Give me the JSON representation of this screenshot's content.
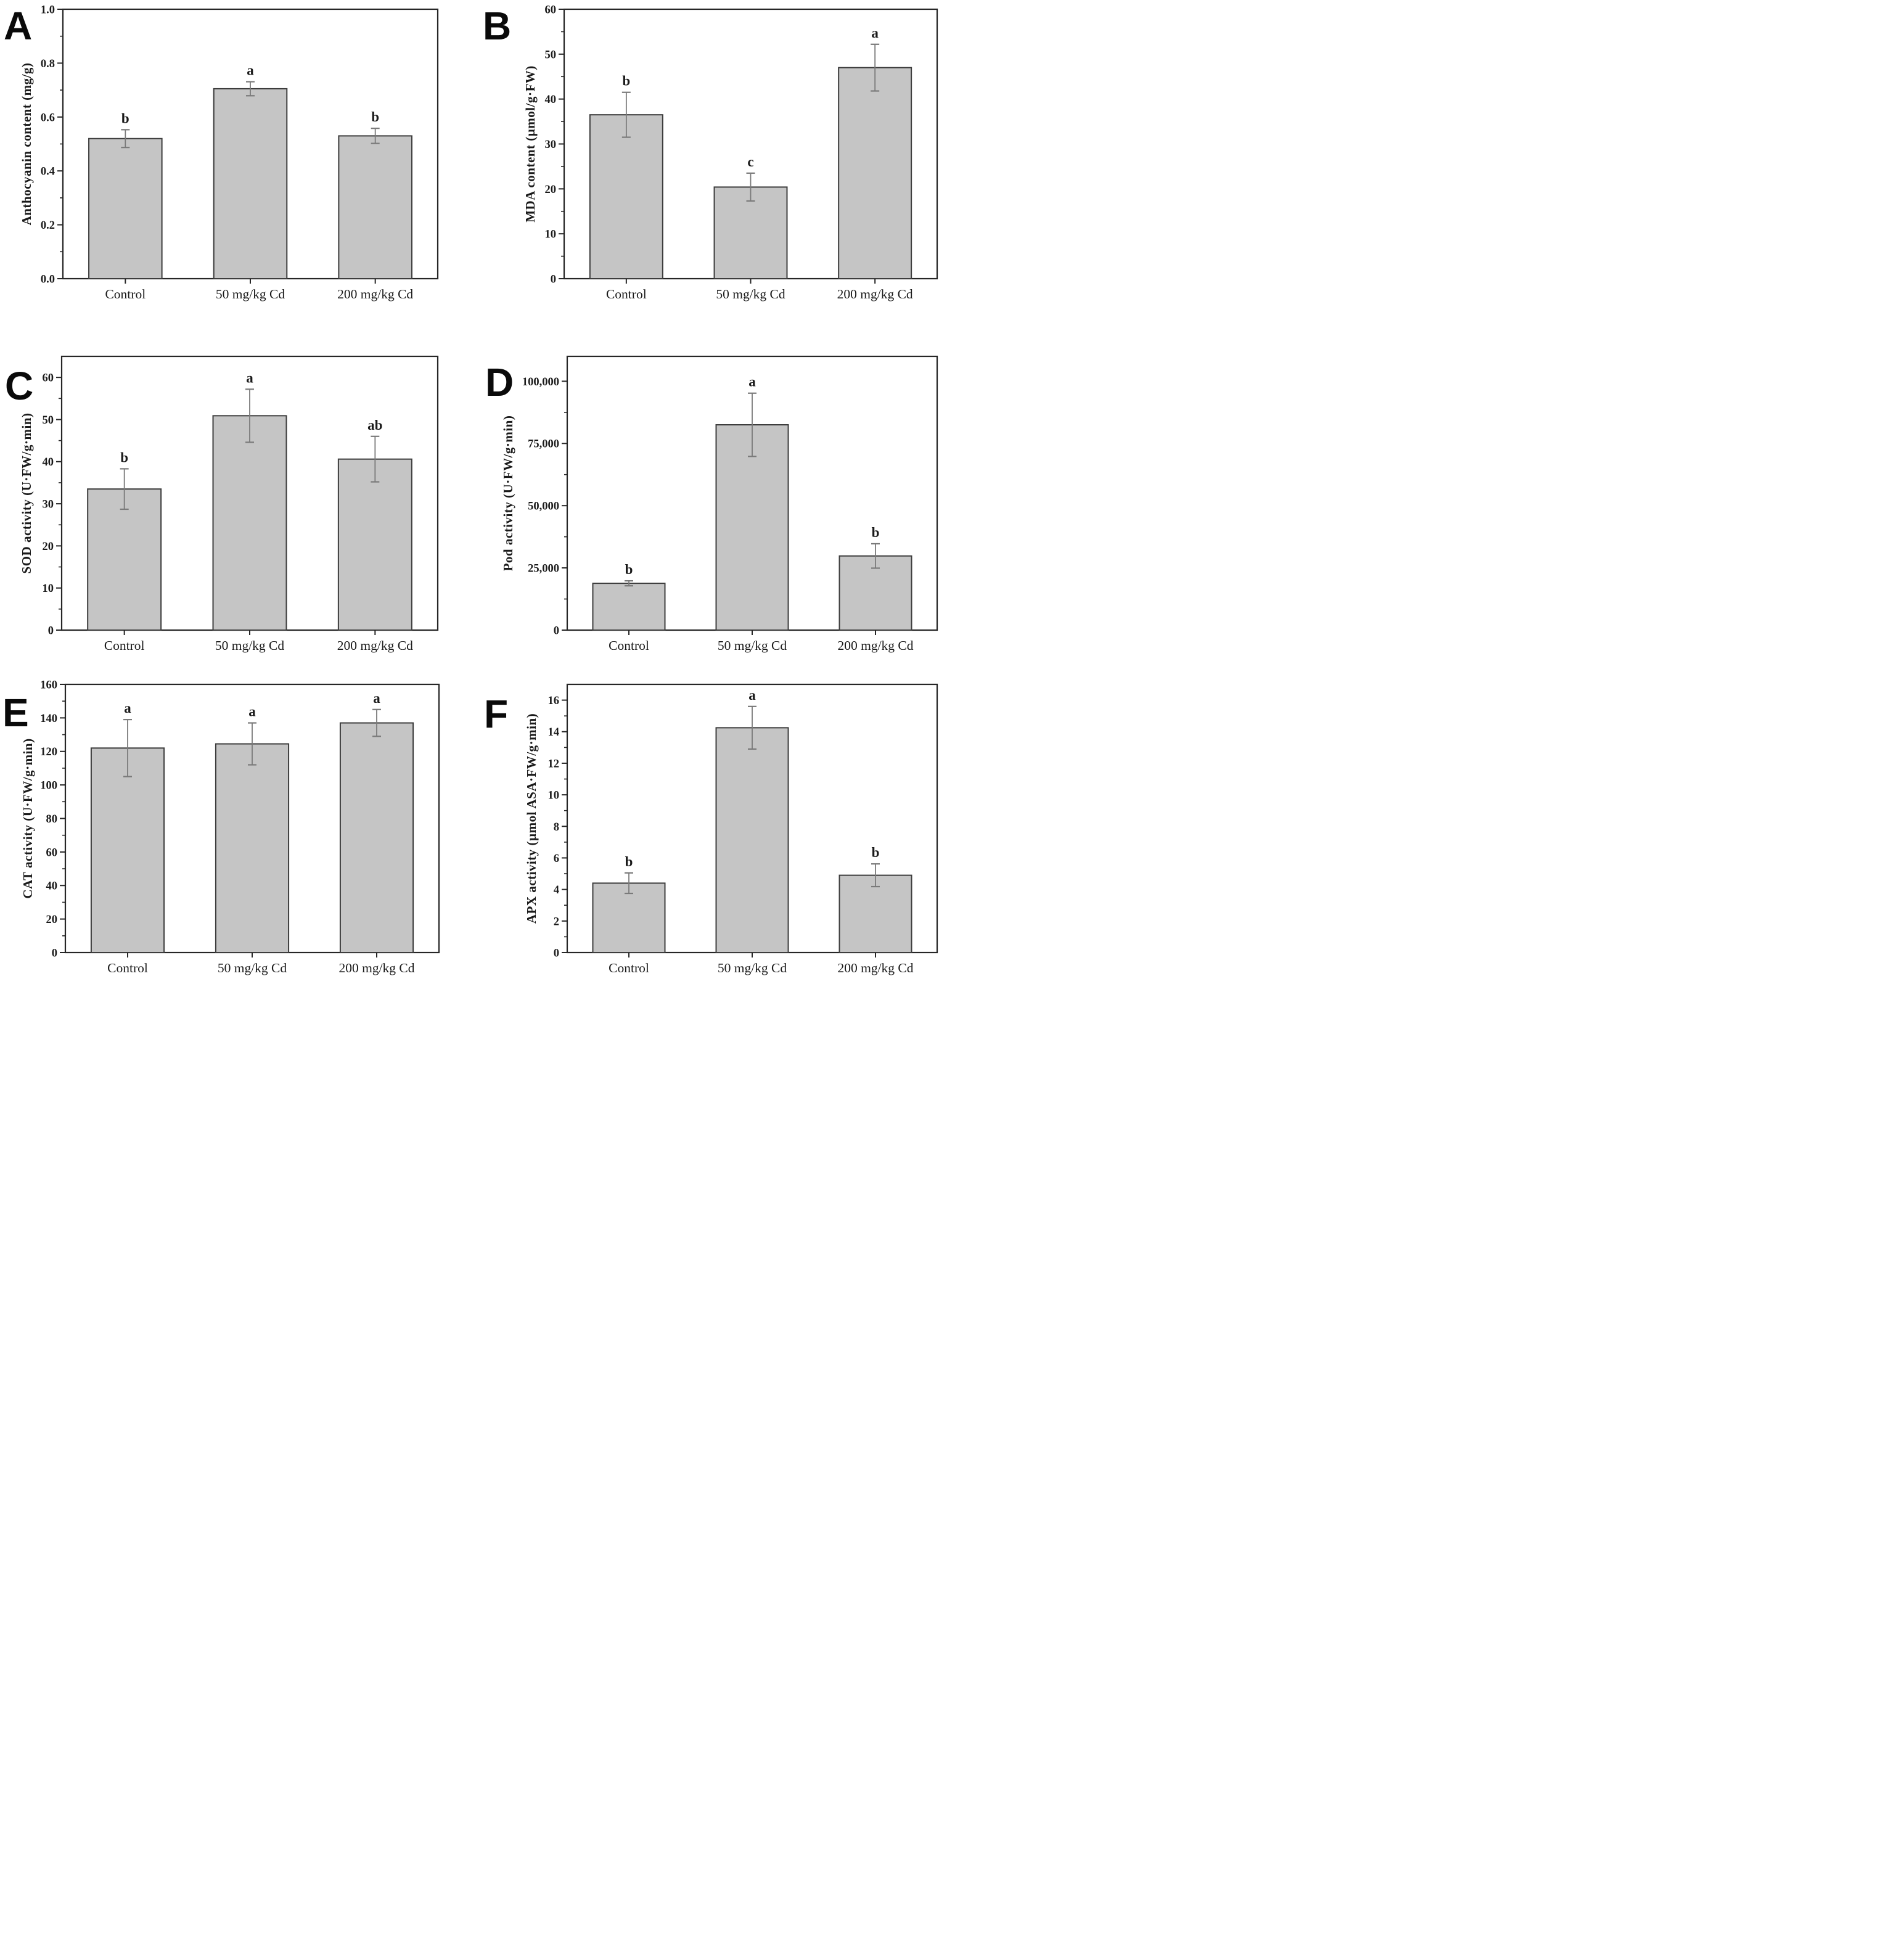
{
  "figure_title": "",
  "treatment_groups": [
    "Control",
    "50 mg/kg Cd",
    "200 mg/kg Cd"
  ],
  "style": {
    "bar_fill": "#c5c5c5",
    "bar_stroke": "#3d3d3d",
    "error_bar_color": "#7a7a7a",
    "axis_color": "#262626",
    "text_color": "#1a1a1a",
    "sig_letter_color": "#000000",
    "background": "#ffffff"
  },
  "chart_data": [
    {
      "panel": "A",
      "type": "bar",
      "title": "",
      "xlabel": "",
      "ylabel": "Anthocyanin content (mg/g)",
      "categories": [
        "Control",
        "50 mg/kg Cd",
        "200 mg/kg Cd"
      ],
      "values": [
        0.52,
        0.705,
        0.53
      ],
      "errors": [
        0.033,
        0.026,
        0.028
      ],
      "sig_letters": [
        "b",
        "a",
        "b"
      ],
      "ylim": [
        0,
        1.0
      ],
      "ytick_major": 0.2,
      "ytick_minor": 0.1,
      "tick_decimals": 1,
      "tick_comma": false,
      "grid": false,
      "legend": "none"
    },
    {
      "panel": "B",
      "type": "bar",
      "title": "",
      "xlabel": "",
      "ylabel": "MDA content (µmol/g·FW)",
      "categories": [
        "Control",
        "50 mg/kg Cd",
        "200 mg/kg Cd"
      ],
      "values": [
        36.5,
        20.4,
        47.0
      ],
      "errors": [
        5.0,
        3.1,
        5.2
      ],
      "sig_letters": [
        "b",
        "c",
        "a"
      ],
      "ylim": [
        0,
        60
      ],
      "ytick_major": 10,
      "ytick_minor": 5,
      "tick_decimals": 0,
      "tick_comma": false,
      "grid": false,
      "legend": "none"
    },
    {
      "panel": "C",
      "type": "bar",
      "title": "",
      "xlabel": "",
      "ylabel": "SOD activity (U·FW/g·min)",
      "categories": [
        "Control",
        "50 mg/kg Cd",
        "200 mg/kg Cd"
      ],
      "values": [
        33.5,
        50.9,
        40.6
      ],
      "errors": [
        4.8,
        6.3,
        5.4
      ],
      "sig_letters": [
        "b",
        "a",
        "ab"
      ],
      "ylim": [
        0,
        65
      ],
      "ytick_major": 10,
      "ytick_minor": 5,
      "tick_decimals": 0,
      "tick_comma": false,
      "grid": false,
      "legend": "none"
    },
    {
      "panel": "D",
      "type": "bar",
      "title": "",
      "xlabel": "",
      "ylabel": "Pod activity (U·FW/g·min)",
      "categories": [
        "Control",
        "50 mg/kg Cd",
        "200 mg/kg Cd"
      ],
      "values": [
        18800,
        82500,
        29800
      ],
      "errors": [
        1000,
        12700,
        4900
      ],
      "sig_letters": [
        "b",
        "a",
        "b"
      ],
      "ylim": [
        0,
        110000
      ],
      "ytick_major": 25000,
      "ytick_minor": 12500,
      "tick_decimals": 0,
      "tick_comma": true,
      "grid": false,
      "legend": "none"
    },
    {
      "panel": "E",
      "type": "bar",
      "title": "",
      "xlabel": "",
      "ylabel": "CAT activity (U·FW/g·min)",
      "categories": [
        "Control",
        "50 mg/kg Cd",
        "200 mg/kg Cd"
      ],
      "values": [
        122,
        124.5,
        137
      ],
      "errors": [
        17,
        12.5,
        8
      ],
      "sig_letters": [
        "a",
        "a",
        "a"
      ],
      "ylim": [
        0,
        160
      ],
      "ytick_major": 20,
      "ytick_minor": 10,
      "tick_decimals": 0,
      "tick_comma": false,
      "grid": false,
      "legend": "none"
    },
    {
      "panel": "F",
      "type": "bar",
      "title": "",
      "xlabel": "",
      "ylabel": "APX activity (µmol ASA·FW/g·min)",
      "categories": [
        "Control",
        "50 mg/kg Cd",
        "200 mg/kg Cd"
      ],
      "values": [
        4.4,
        14.25,
        4.9
      ],
      "errors": [
        0.65,
        1.35,
        0.72
      ],
      "sig_letters": [
        "b",
        "a",
        "b"
      ],
      "ylim": [
        0,
        17
      ],
      "ytick_major": 2,
      "ytick_minor": 1,
      "tick_decimals": 0,
      "tick_comma": false,
      "grid": false,
      "legend": "none"
    }
  ]
}
